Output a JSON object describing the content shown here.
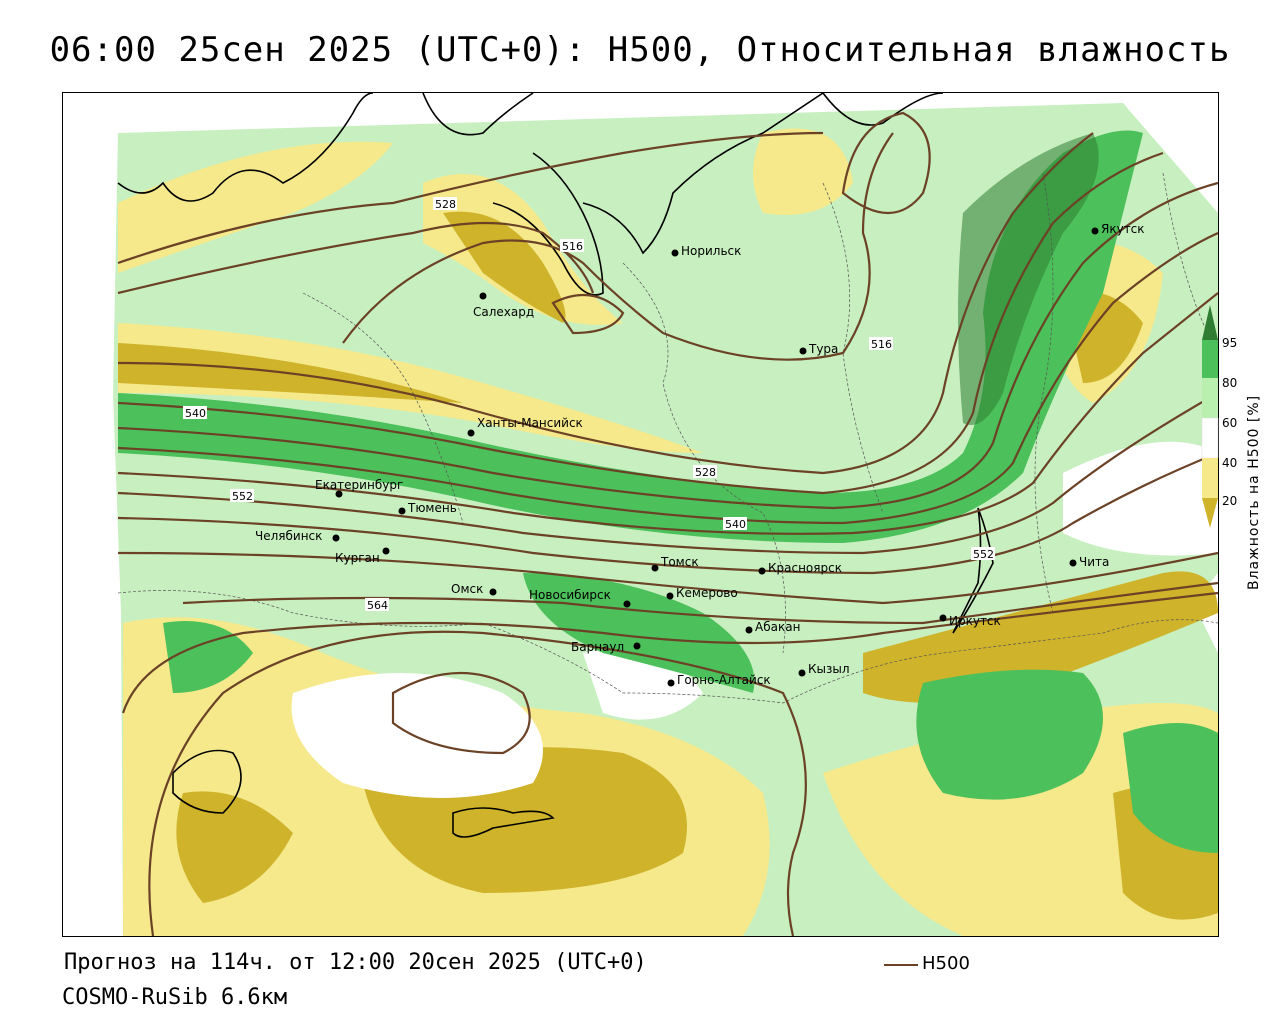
{
  "title": "06:00 25сен 2025 (UTC+0): H500, Относительная влажность",
  "footer": {
    "forecast": "Прогноз на 114ч. от 12:00 20сен 2025 (UTC+0)",
    "model": "COSMO-RuSib 6.6км"
  },
  "legend": {
    "contour_label": "H500",
    "contour_color": "#6b4226"
  },
  "colorbar": {
    "title": "Влажность на H500 [%]",
    "ticks": [
      "95",
      "80",
      "60",
      "40",
      "20"
    ],
    "colors": {
      "c95": "#2e7d32",
      "c80": "#4cc05a",
      "c60": "#b9f0b0",
      "c40": "#ffffff",
      "c20": "#f5e98c",
      "c0": "#cfb32a"
    }
  },
  "cities": [
    {
      "name": "Якутск"
    },
    {
      "name": "Норильск"
    },
    {
      "name": "Салехард"
    },
    {
      "name": "Тура"
    },
    {
      "name": "Ханты-Мансийск"
    },
    {
      "name": "Екатеринбург"
    },
    {
      "name": "Тюмень"
    },
    {
      "name": "Челябинск"
    },
    {
      "name": "Курган"
    },
    {
      "name": "Омск"
    },
    {
      "name": "Новосибирск"
    },
    {
      "name": "Томск"
    },
    {
      "name": "Кемерово"
    },
    {
      "name": "Красноярск"
    },
    {
      "name": "Абакан"
    },
    {
      "name": "Барнаул"
    },
    {
      "name": "Горно-Алтайск"
    },
    {
      "name": "Кызыл"
    },
    {
      "name": "Иркутск"
    },
    {
      "name": "Чита"
    }
  ],
  "contour_labels": [
    "528",
    "516",
    "516",
    "540",
    "552",
    "528",
    "540",
    "552",
    "564"
  ]
}
